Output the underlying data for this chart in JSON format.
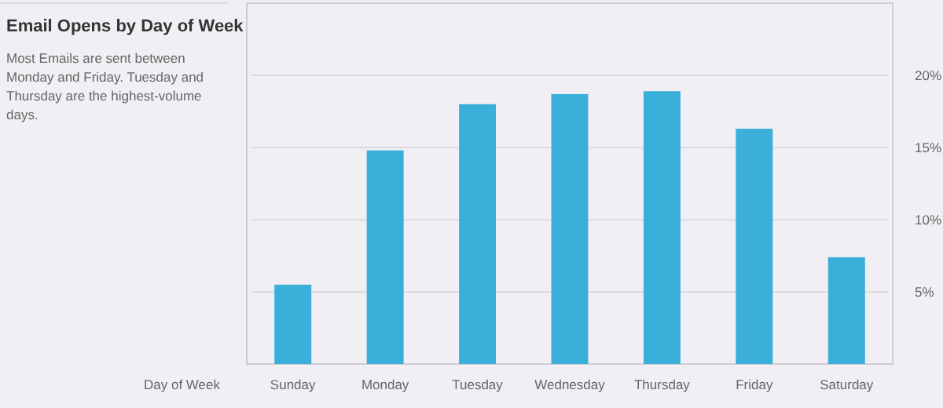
{
  "chart_data": {
    "type": "bar",
    "title": "Email Opens by Day of Week",
    "subtitle": "Most Emails are sent between Monday and Friday. Tuesday and Thursday are the highest-volume days.",
    "xlabel": "Day of Week",
    "categories": [
      "Sunday",
      "Monday",
      "Tuesday",
      "Wednesday",
      "Thursday",
      "Friday",
      "Saturday"
    ],
    "values": [
      5.5,
      14.8,
      18.0,
      18.7,
      18.9,
      16.3,
      7.4
    ],
    "color": "#3aafd9",
    "ylim": [
      0,
      25
    ],
    "yticks": [
      {
        "value": 5,
        "label": "5%"
      },
      {
        "value": 10,
        "label": "10%"
      },
      {
        "value": 15,
        "label": "15%"
      },
      {
        "value": 20,
        "label": "20%"
      }
    ],
    "grid": "y"
  }
}
